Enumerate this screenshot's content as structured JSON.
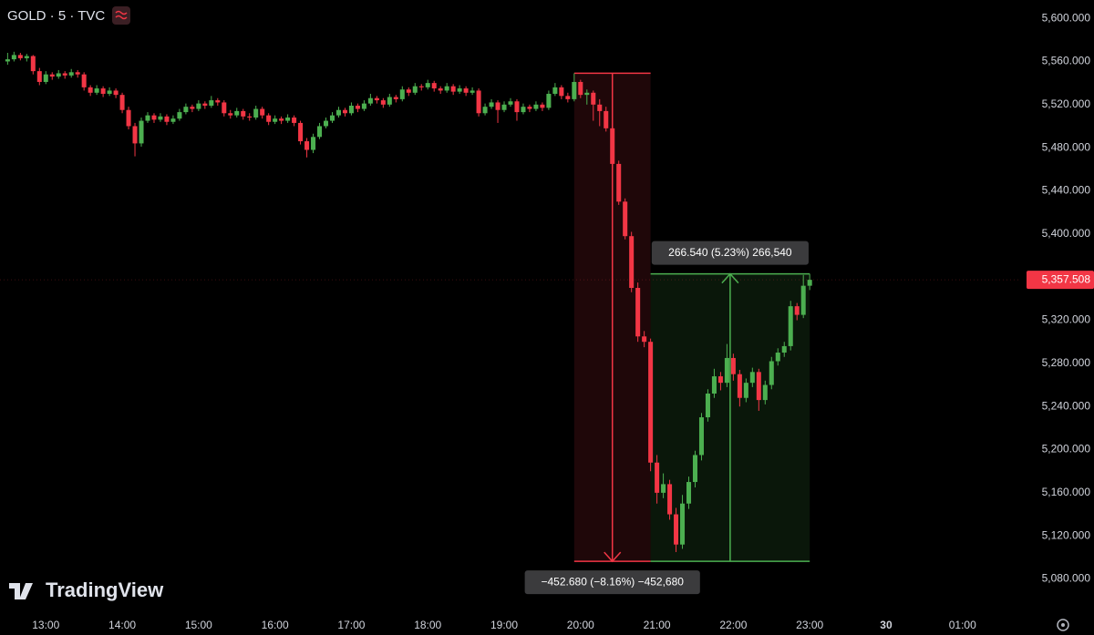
{
  "chart_data": {
    "type": "candlestick",
    "title": "GOLD · 5 · TVC",
    "x": [
      750,
      755,
      760,
      765,
      770,
      775,
      780,
      785,
      790,
      795,
      800,
      805,
      810,
      815,
      820,
      825,
      830,
      835,
      840,
      845,
      850,
      855,
      860,
      865,
      870,
      875,
      880,
      885,
      890,
      895,
      900,
      905,
      910,
      915,
      920,
      925,
      930,
      935,
      940,
      945,
      950,
      955,
      960,
      965,
      970,
      975,
      980,
      985,
      990,
      995,
      1000,
      1005,
      1010,
      1015,
      1020,
      1025,
      1030,
      1035,
      1040,
      1045,
      1050,
      1055,
      1060,
      1065,
      1070,
      1075,
      1080,
      1085,
      1090,
      1095,
      1100,
      1105,
      1110,
      1115,
      1120,
      1125,
      1130,
      1135,
      1140,
      1145,
      1150,
      1155,
      1160,
      1165,
      1170,
      1175,
      1180,
      1185,
      1190,
      1195,
      1200,
      1205,
      1210,
      1215,
      1220,
      1225,
      1230,
      1235,
      1240,
      1245,
      1250,
      1255,
      1260,
      1265,
      1270,
      1275,
      1280,
      1285,
      1290,
      1295,
      1300,
      1305,
      1310,
      1315,
      1320,
      1325,
      1330,
      1335,
      1340,
      1345,
      1350,
      1355,
      1360,
      1365,
      1370,
      1375,
      1380
    ],
    "open": [
      5560,
      5562,
      5566,
      5563,
      5565,
      5551,
      5541,
      5548,
      5546,
      5549,
      5547,
      5550,
      5548,
      5536,
      5531,
      5535,
      5530,
      5533,
      5529,
      5515,
      5500,
      5484,
      5505,
      5510,
      5506,
      5509,
      5504,
      5507,
      5513,
      5518,
      5516,
      5521,
      5519,
      5524,
      5522,
      5512,
      5510,
      5514,
      5509,
      5508,
      5516,
      5510,
      5504,
      5507,
      5505,
      5508,
      5503,
      5486,
      5478,
      5490,
      5500,
      5505,
      5510,
      5515,
      5512,
      5519,
      5516,
      5521,
      5526,
      5524,
      5520,
      5527,
      5525,
      5534,
      5531,
      5537,
      5536,
      5540,
      5535,
      5533,
      5537,
      5532,
      5535,
      5531,
      5533,
      5512,
      5518,
      5522,
      5515,
      5520,
      5523,
      5513,
      5518,
      5516,
      5520,
      5517,
      5530,
      5536,
      5528,
      5525,
      5541,
      5529,
      5531,
      5520,
      5514,
      5498,
      5465,
      5430,
      5398,
      5350,
      5305,
      5300,
      5188,
      5160,
      5168,
      5140,
      5112,
      5150,
      5170,
      5195,
      5230,
      5252,
      5268,
      5262,
      5285,
      5270,
      5248,
      5262,
      5272,
      5246,
      5260,
      5282,
      5290,
      5296,
      5333,
      5325,
      5352
    ],
    "high": [
      5568,
      5569,
      5568,
      5567,
      5566,
      5554,
      5551,
      5550,
      5552,
      5551,
      5553,
      5552,
      5550,
      5538,
      5538,
      5537,
      5536,
      5535,
      5531,
      5518,
      5503,
      5508,
      5513,
      5512,
      5512,
      5511,
      5510,
      5516,
      5521,
      5520,
      5524,
      5523,
      5528,
      5526,
      5524,
      5515,
      5517,
      5516,
      5512,
      5519,
      5518,
      5512,
      5510,
      5509,
      5511,
      5510,
      5505,
      5489,
      5493,
      5503,
      5508,
      5513,
      5518,
      5517,
      5522,
      5521,
      5524,
      5530,
      5528,
      5526,
      5530,
      5529,
      5537,
      5536,
      5540,
      5539,
      5543,
      5542,
      5537,
      5540,
      5539,
      5538,
      5537,
      5536,
      5535,
      5521,
      5525,
      5524,
      5523,
      5526,
      5525,
      5521,
      5520,
      5523,
      5522,
      5533,
      5540,
      5538,
      5531,
      5549,
      5543,
      5534,
      5533,
      5525,
      5518,
      5500,
      5468,
      5433,
      5402,
      5355,
      5310,
      5303,
      5195,
      5178,
      5172,
      5146,
      5158,
      5175,
      5199,
      5234,
      5256,
      5275,
      5272,
      5298,
      5289,
      5274,
      5266,
      5276,
      5275,
      5264,
      5286,
      5294,
      5300,
      5338,
      5336,
      5362,
      5363
    ],
    "low": [
      5557,
      5560,
      5561,
      5560,
      5548,
      5538,
      5539,
      5543,
      5544,
      5544,
      5545,
      5545,
      5533,
      5528,
      5529,
      5527,
      5528,
      5526,
      5512,
      5497,
      5472,
      5481,
      5503,
      5503,
      5504,
      5501,
      5502,
      5505,
      5511,
      5513,
      5514,
      5516,
      5517,
      5519,
      5509,
      5507,
      5508,
      5506,
      5505,
      5506,
      5507,
      5501,
      5502,
      5502,
      5503,
      5500,
      5483,
      5471,
      5475,
      5488,
      5498,
      5503,
      5508,
      5509,
      5510,
      5513,
      5514,
      5519,
      5521,
      5517,
      5518,
      5522,
      5523,
      5528,
      5529,
      5533,
      5534,
      5532,
      5530,
      5531,
      5529,
      5530,
      5528,
      5529,
      5509,
      5510,
      5516,
      5503,
      5513,
      5518,
      5505,
      5511,
      5513,
      5514,
      5514,
      5515,
      5528,
      5525,
      5522,
      5523,
      5526,
      5520,
      5505,
      5500,
      5495,
      5462,
      5427,
      5395,
      5346,
      5300,
      5295,
      5180,
      5150,
      5155,
      5135,
      5105,
      5108,
      5145,
      5165,
      5190,
      5226,
      5248,
      5255,
      5258,
      5264,
      5240,
      5244,
      5258,
      5236,
      5242,
      5256,
      5278,
      5286,
      5292,
      5320,
      5322,
      5348
    ],
    "close": [
      5562,
      5566,
      5563,
      5565,
      5551,
      5541,
      5548,
      5546,
      5549,
      5547,
      5550,
      5548,
      5536,
      5531,
      5535,
      5530,
      5533,
      5529,
      5515,
      5500,
      5484,
      5505,
      5510,
      5506,
      5509,
      5504,
      5507,
      5513,
      5518,
      5516,
      5521,
      5519,
      5524,
      5522,
      5512,
      5510,
      5514,
      5509,
      5508,
      5516,
      5510,
      5504,
      5507,
      5505,
      5508,
      5503,
      5486,
      5478,
      5490,
      5500,
      5505,
      5510,
      5515,
      5512,
      5519,
      5516,
      5521,
      5526,
      5524,
      5520,
      5527,
      5525,
      5534,
      5531,
      5537,
      5536,
      5540,
      5535,
      5533,
      5537,
      5532,
      5535,
      5531,
      5533,
      5512,
      5518,
      5522,
      5515,
      5520,
      5523,
      5513,
      5518,
      5516,
      5520,
      5517,
      5530,
      5536,
      5528,
      5525,
      5541,
      5529,
      5531,
      5520,
      5514,
      5498,
      5465,
      5430,
      5398,
      5350,
      5305,
      5300,
      5188,
      5160,
      5168,
      5140,
      5112,
      5150,
      5170,
      5195,
      5230,
      5252,
      5268,
      5262,
      5285,
      5270,
      5248,
      5262,
      5272,
      5246,
      5260,
      5282,
      5290,
      5296,
      5333,
      5325,
      5352,
      5357.508
    ],
    "up_color": "#4caf50",
    "down_color": "#f23645",
    "xlim": [
      744,
      1546
    ],
    "xticks": [
      {
        "value": 780,
        "label": "13:00"
      },
      {
        "value": 840,
        "label": "14:00"
      },
      {
        "value": 900,
        "label": "15:00"
      },
      {
        "value": 960,
        "label": "16:00"
      },
      {
        "value": 1020,
        "label": "17:00"
      },
      {
        "value": 1080,
        "label": "18:00"
      },
      {
        "value": 1140,
        "label": "19:00"
      },
      {
        "value": 1200,
        "label": "20:00"
      },
      {
        "value": 1260,
        "label": "21:00"
      },
      {
        "value": 1320,
        "label": "22:00"
      },
      {
        "value": 1380,
        "label": "23:00"
      },
      {
        "value": 1440,
        "label": "30"
      },
      {
        "value": 1500,
        "label": "01:00"
      }
    ],
    "ylim": [
      5045,
      5617
    ],
    "yticks": [
      {
        "value": 5080,
        "label": "5,080.000"
      },
      {
        "value": 5120,
        "label": "5,120.000"
      },
      {
        "value": 5160,
        "label": "5,160.000"
      },
      {
        "value": 5200,
        "label": "5,200.000"
      },
      {
        "value": 5240,
        "label": "5,240.000"
      },
      {
        "value": 5280,
        "label": "5,280.000"
      },
      {
        "value": 5320,
        "label": "5,320.000"
      },
      {
        "value": 5400,
        "label": "5,400.000"
      },
      {
        "value": 5440,
        "label": "5,440.000"
      },
      {
        "value": 5480,
        "label": "5,480.000"
      },
      {
        "value": 5520,
        "label": "5,520.000"
      },
      {
        "value": 5560,
        "label": "5,560.000"
      },
      {
        "value": 5600,
        "label": "5,600.000"
      }
    ],
    "last_price": {
      "value": 5357.508,
      "label": "5,357.508"
    },
    "last_price_color": "#f23645",
    "measures": [
      {
        "label": "−452.680 (−8.16%) −452,680",
        "from": 5549.1,
        "to": 5096.42,
        "start": 1195,
        "end": 1255,
        "color": "#f23645"
      },
      {
        "label": "266.540 (5.23%) 266,540",
        "from": 5096.42,
        "to": 5362.96,
        "start": 1255,
        "end": 1380,
        "color": "#4caf50"
      }
    ]
  },
  "watermark": "TradingView"
}
